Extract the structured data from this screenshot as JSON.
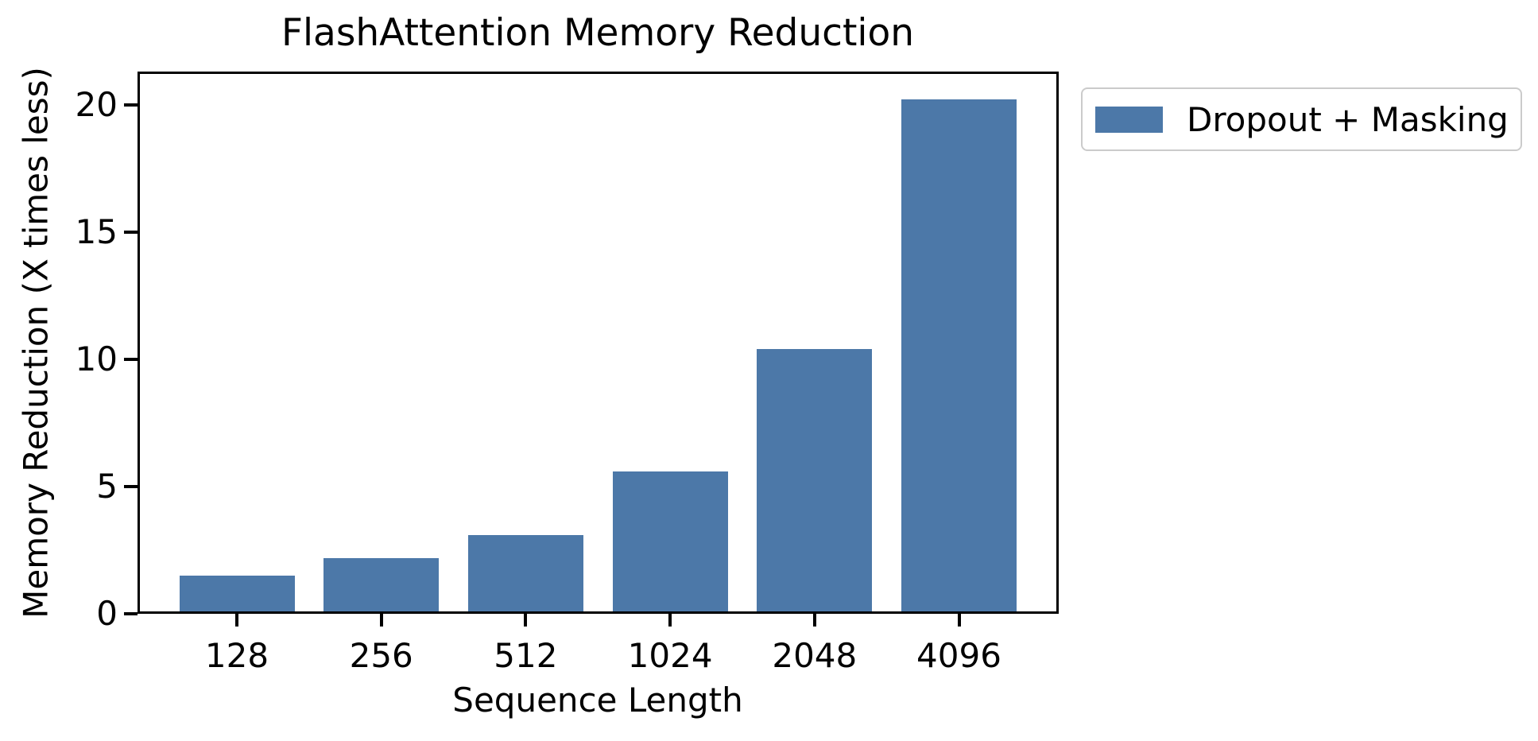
{
  "chart_data": {
    "type": "bar",
    "title": "FlashAttention Memory Reduction",
    "xlabel": "Sequence Length",
    "ylabel": "Memory Reduction (X times less)",
    "categories": [
      "128",
      "256",
      "512",
      "1024",
      "2048",
      "4096"
    ],
    "values": [
      1.5,
      2.2,
      3.1,
      5.6,
      10.4,
      20.2
    ],
    "yticks": [
      0,
      5,
      10,
      15,
      20
    ],
    "ylim": [
      0,
      21.3
    ],
    "grid": false,
    "legend": {
      "label": "Dropout + Masking",
      "position": "upper-right-outside"
    },
    "bar_color": "#4C78A8"
  },
  "colors": {
    "bar": "#4C78A8",
    "spine": "#000000",
    "legend_border": "#cbcbcb",
    "background": "#ffffff"
  }
}
